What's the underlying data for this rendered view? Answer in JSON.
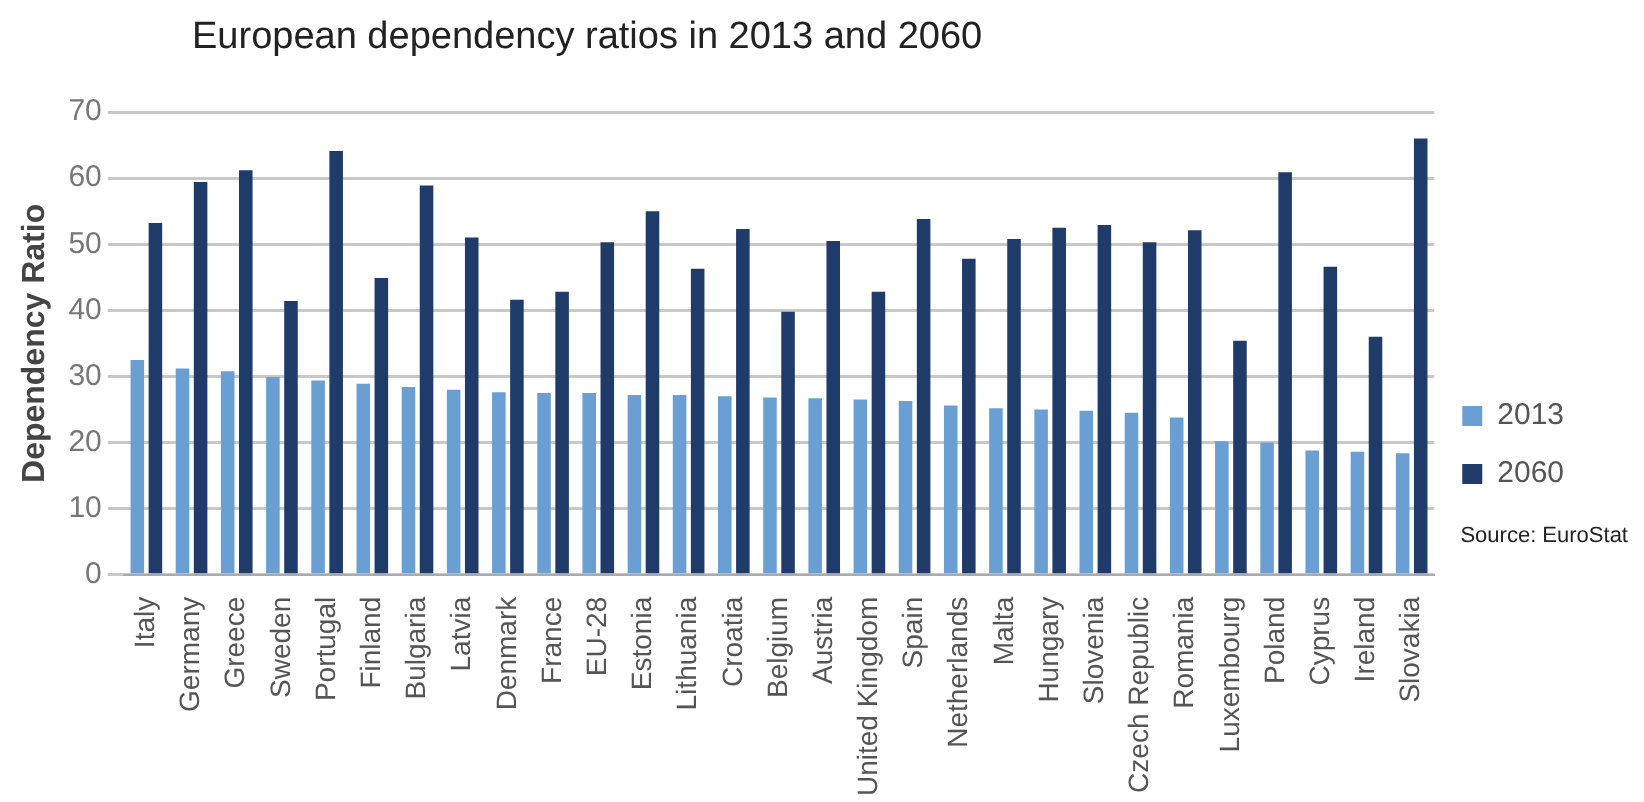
{
  "chart_data": {
    "type": "bar",
    "title": "European dependency ratios in 2013 and 2060",
    "ylabel": "Dependency Ratio",
    "categories": [
      "Italy",
      "Germany",
      "Greece",
      "Sweden",
      "Portugal",
      "Finland",
      "Bulgaria",
      "Latvia",
      "Denmark",
      "France",
      "EU-28",
      "Estonia",
      "Lithuania",
      "Croatia",
      "Belgium",
      "Austria",
      "United Kingdom",
      "Spain",
      "Netherlands",
      "Malta",
      "Hungary",
      "Slovenia",
      "Czech Republic",
      "Romania",
      "Luxembourg",
      "Poland",
      "Cyprus",
      "Ireland",
      "Slovakia"
    ],
    "series": [
      {
        "name": "2013",
        "color": "#6a9fd4",
        "values": [
          32.5,
          31.2,
          30.8,
          29.9,
          29.4,
          28.9,
          28.4,
          28.0,
          27.6,
          27.5,
          27.5,
          27.2,
          27.2,
          27.0,
          26.8,
          26.7,
          26.5,
          26.3,
          25.6,
          25.2,
          25.0,
          24.8,
          24.5,
          23.8,
          20.2,
          20.0,
          18.8,
          18.6,
          18.4
        ]
      },
      {
        "name": "2060",
        "color": "#1f3b6a",
        "values": [
          53.2,
          59.4,
          61.2,
          41.4,
          64.1,
          44.9,
          58.9,
          51.0,
          41.6,
          42.8,
          50.3,
          55.0,
          46.3,
          52.3,
          39.8,
          50.5,
          42.8,
          53.8,
          47.8,
          50.8,
          52.5,
          52.9,
          50.3,
          52.1,
          35.4,
          60.9,
          46.6,
          36.0,
          66.0
        ]
      }
    ],
    "ylim": [
      0,
      70
    ],
    "yticks": [
      0,
      10,
      20,
      30,
      40,
      50,
      60,
      70
    ],
    "grid": "y",
    "legend": "right",
    "annotations": [
      "Source: EuroStat"
    ]
  }
}
